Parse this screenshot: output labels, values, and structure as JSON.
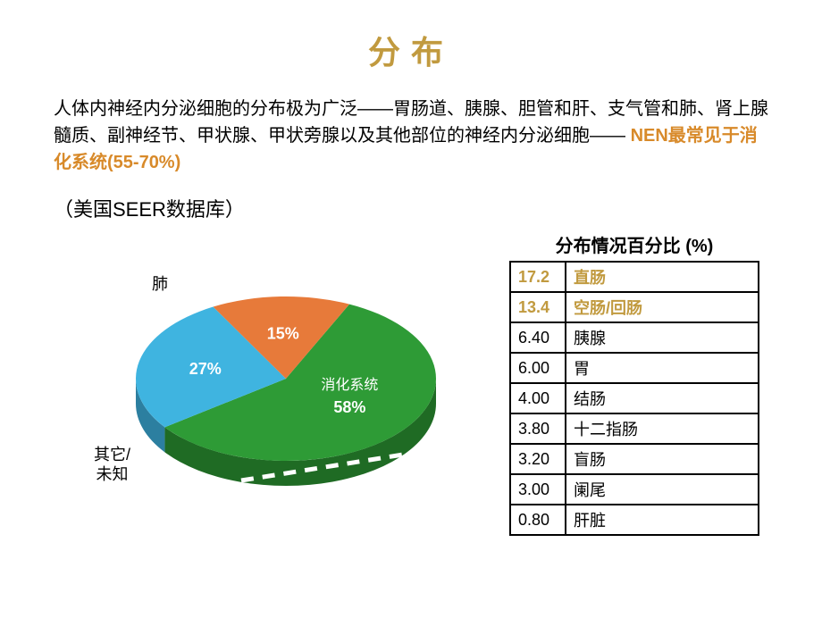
{
  "title": {
    "text": "分布",
    "color": "#c19a3f"
  },
  "desc": {
    "pre": "人体内神经内分泌细胞的分布极为广泛——胃肠道、胰腺、胆管和肝、支气管和肺、肾上腺髓质、副神经节、甲状腺、甲状旁腺以及其他部位的神经内分泌细胞—— ",
    "highlight": "NEN最常见于消化系统(55-70%)",
    "highlight_color": "#d88a2a"
  },
  "subtitle": "（美国SEER数据库）",
  "pie": {
    "type": "pie-3d",
    "background_color": "#ffffff",
    "slices": [
      {
        "label": "消化系统",
        "value": 58,
        "percent_label": "58%",
        "color": "#2e9b36",
        "side_color": "#1f6b24",
        "label_inside": true
      },
      {
        "label": "肺",
        "value": 27,
        "percent_label": "27%",
        "color": "#3fb4e0",
        "side_color": "#2c7fa0",
        "label_outside": true
      },
      {
        "label": "其它/未知",
        "value": 15,
        "percent_label": "15%",
        "color": "#e77a3a",
        "side_color": "#b35520",
        "label_outside": true
      }
    ],
    "label_fontsize": 16,
    "percent_fontsize": 18,
    "percent_color": "#ffffff",
    "ext_label_color": "#000000",
    "dash_color": "#ffffff"
  },
  "table": {
    "title": "分布情况百分比 (%)",
    "highlight_color": "#c19a3f",
    "header_row_highlighted": [
      0,
      1
    ],
    "rows": [
      {
        "value": "17.2",
        "label": "直肠"
      },
      {
        "value": "13.4",
        "label": "空肠/回肠"
      },
      {
        "value": "6.40",
        "label": "胰腺"
      },
      {
        "value": "6.00",
        "label": "胃"
      },
      {
        "value": "4.00",
        "label": "结肠"
      },
      {
        "value": "3.80",
        "label": "十二指肠"
      },
      {
        "value": "3.20",
        "label": "盲肠"
      },
      {
        "value": "3.00",
        "label": "阑尾"
      },
      {
        "value": "0.80",
        "label": "肝脏"
      }
    ],
    "border_color": "#000000",
    "fontsize": 18
  }
}
